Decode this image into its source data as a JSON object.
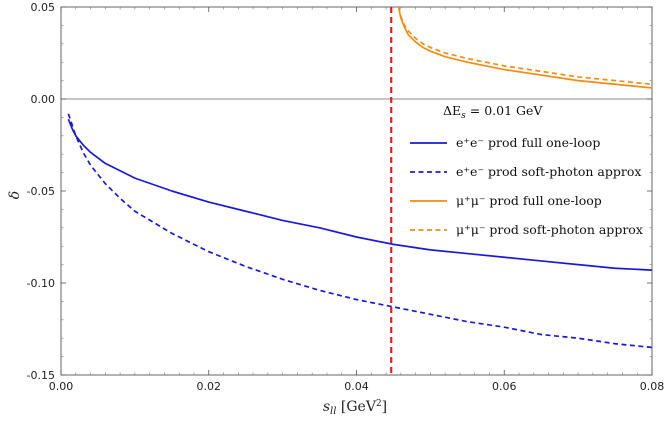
{
  "chart_data": {
    "type": "line",
    "xlabel": "s_ll [GeV²]",
    "ylabel": "δ",
    "xlim": [
      0,
      0.08
    ],
    "ylim": [
      -0.15,
      0.05
    ],
    "x_ticks": [
      0,
      0.02,
      0.04,
      0.06,
      0.08
    ],
    "x_tick_labels": [
      "0.00",
      "0.02",
      "0.04",
      "0.06",
      "0.08"
    ],
    "y_ticks": [
      -0.15,
      -0.1,
      -0.05,
      0.0,
      0.05
    ],
    "y_tick_labels": [
      "-0.15",
      "-0.10",
      "-0.05",
      "0.00",
      "0.05"
    ],
    "grid": false,
    "legend_position": "right",
    "legend_title": "ΔE_s = 0.01 GeV",
    "reference_lines": [
      {
        "orientation": "horizontal",
        "y": 0.0,
        "color": "#888888"
      },
      {
        "orientation": "vertical",
        "x": 0.0447,
        "color": "#e0221b",
        "dash": true
      }
    ],
    "series": [
      {
        "name": "e⁺e⁻ prod full one-loop",
        "color": "#1a1ad6",
        "dash": false,
        "x": [
          0.001,
          0.0015,
          0.002,
          0.003,
          0.004,
          0.006,
          0.008,
          0.01,
          0.015,
          0.02,
          0.025,
          0.03,
          0.035,
          0.04,
          0.045,
          0.05,
          0.055,
          0.06,
          0.065,
          0.07,
          0.075,
          0.08
        ],
        "y": [
          -0.011,
          -0.016,
          -0.02,
          -0.025,
          -0.029,
          -0.035,
          -0.039,
          -0.043,
          -0.05,
          -0.056,
          -0.061,
          -0.066,
          -0.07,
          -0.075,
          -0.079,
          -0.082,
          -0.084,
          -0.086,
          -0.088,
          -0.09,
          -0.092,
          -0.093
        ]
      },
      {
        "name": "e⁺e⁻ prod soft-photon approx",
        "color": "#1a1ad6",
        "dash": true,
        "x": [
          0.001,
          0.0015,
          0.002,
          0.003,
          0.004,
          0.006,
          0.008,
          0.01,
          0.015,
          0.02,
          0.025,
          0.03,
          0.035,
          0.04,
          0.045,
          0.05,
          0.055,
          0.06,
          0.065,
          0.07,
          0.075,
          0.08
        ],
        "y": [
          -0.008,
          -0.014,
          -0.02,
          -0.029,
          -0.036,
          -0.046,
          -0.054,
          -0.061,
          -0.073,
          -0.083,
          -0.091,
          -0.098,
          -0.104,
          -0.109,
          -0.113,
          -0.117,
          -0.121,
          -0.124,
          -0.128,
          -0.13,
          -0.133,
          -0.135
        ]
      },
      {
        "name": "μ⁺μ⁻ prod full one-loop",
        "color": "#f08c14",
        "dash": false,
        "x": [
          0.0457,
          0.046,
          0.0465,
          0.047,
          0.048,
          0.049,
          0.05,
          0.052,
          0.055,
          0.06,
          0.065,
          0.07,
          0.075,
          0.08
        ],
        "y": [
          0.05,
          0.044,
          0.039,
          0.035,
          0.031,
          0.028,
          0.026,
          0.023,
          0.02,
          0.016,
          0.013,
          0.01,
          0.008,
          0.006
        ]
      },
      {
        "name": "μ⁺μ⁻ prod soft-photon approx",
        "color": "#f08c14",
        "dash": true,
        "x": [
          0.0457,
          0.046,
          0.0465,
          0.047,
          0.048,
          0.049,
          0.05,
          0.052,
          0.055,
          0.06,
          0.065,
          0.07,
          0.075,
          0.08
        ],
        "y": [
          0.05,
          0.045,
          0.04,
          0.037,
          0.033,
          0.03,
          0.028,
          0.025,
          0.022,
          0.018,
          0.015,
          0.012,
          0.01,
          0.008
        ]
      }
    ]
  }
}
